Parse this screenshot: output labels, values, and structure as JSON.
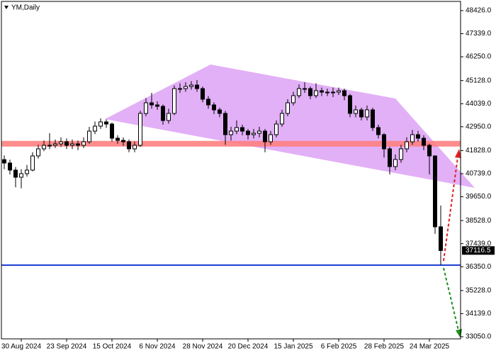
{
  "chart_data": {
    "type": "candlestick",
    "title": "YM,Daily",
    "categories": [
      null,
      null,
      null,
      "30 Aug 2024",
      null,
      null,
      null,
      null,
      null,
      null,
      null,
      "23 Sep 2024",
      null,
      null,
      null,
      null,
      null,
      null,
      null,
      "15 Oct 2024",
      null,
      null,
      null,
      null,
      null,
      null,
      null,
      "6 Nov 2024",
      null,
      null,
      null,
      null,
      null,
      null,
      null,
      "28 Nov 2024",
      null,
      null,
      null,
      null,
      null,
      null,
      null,
      "20 Dec 2024",
      null,
      null,
      null,
      null,
      null,
      null,
      null,
      "15 Jan 2025",
      null,
      null,
      null,
      null,
      null,
      null,
      null,
      "6 Feb 2025",
      null,
      null,
      null,
      null,
      null,
      null,
      null,
      "28 Feb 2025",
      null,
      null,
      null,
      null,
      null,
      null,
      null,
      "24 Mar 2025",
      null,
      null
    ],
    "open": [
      41400,
      41241,
      40907,
      40572,
      40739,
      40907,
      41575,
      41909,
      42076,
      42076,
      42143,
      42243,
      42076,
      42143,
      42076,
      42243,
      42745,
      42979,
      43179,
      43079,
      42410,
      42310,
      42243,
      41909,
      42076,
      43580,
      44081,
      43981,
      43914,
      43246,
      43580,
      44750,
      44750,
      44850,
      44917,
      44750,
      44249,
      43981,
      43747,
      43580,
      42578,
      42745,
      42912,
      42745,
      42578,
      42644,
      42745,
      42243,
      42578,
      43079,
      43580,
      44081,
      44416,
      44750,
      44750,
      44416,
      44650,
      44583,
      44583,
      44583,
      44650,
      44416,
      43580,
      43747,
      43413,
      43747,
      42912,
      42578,
      41909,
      41074,
      41408,
      41909,
      42243,
      42578,
      42410,
      42076,
      41575,
      38233
    ],
    "high": [
      41600,
      41400,
      41050,
      40950,
      41150,
      41750,
      42100,
      42300,
      42650,
      42350,
      42450,
      42400,
      42350,
      42300,
      42450,
      42950,
      43200,
      43350,
      43300,
      43150,
      42550,
      42450,
      42350,
      42250,
      43700,
      44300,
      44550,
      44150,
      44000,
      43800,
      44900,
      45000,
      45050,
      45100,
      45150,
      44850,
      44400,
      44100,
      43850,
      43700,
      42950,
      43250,
      43050,
      42850,
      42850,
      42950,
      42850,
      42750,
      43250,
      43750,
      44250,
      44600,
      44950,
      45050,
      44850,
      45000,
      44800,
      44750,
      44800,
      44800,
      44750,
      44500,
      43950,
      43850,
      43950,
      43850,
      43050,
      42650,
      42000,
      41650,
      42100,
      42450,
      42800,
      42750,
      42550,
      42150,
      41600,
      39236
    ],
    "low": [
      40950,
      40700,
      40100,
      40050,
      40600,
      40850,
      41450,
      41800,
      41900,
      41950,
      42000,
      41900,
      41900,
      41850,
      41950,
      42150,
      42600,
      42850,
      42900,
      42250,
      42150,
      42050,
      41750,
      41750,
      42000,
      43450,
      43800,
      43750,
      43050,
      43100,
      43500,
      44550,
      44600,
      44700,
      44600,
      44100,
      43800,
      43550,
      43400,
      42100,
      42300,
      42600,
      42550,
      42350,
      42400,
      42450,
      41750,
      42100,
      42450,
      42950,
      43450,
      43950,
      44300,
      44550,
      44250,
      44300,
      44400,
      44400,
      44350,
      44450,
      44200,
      43400,
      43400,
      43250,
      43250,
      42750,
      42400,
      41500,
      40700,
      40900,
      41250,
      41750,
      42100,
      42250,
      41850,
      40700,
      37900,
      36427
    ],
    "close": [
      41241,
      40907,
      40572,
      40739,
      40907,
      41575,
      41909,
      42076,
      42076,
      42143,
      42243,
      42076,
      42143,
      42076,
      42243,
      42745,
      42979,
      43179,
      43079,
      42410,
      42310,
      42243,
      41909,
      42076,
      43580,
      44081,
      43981,
      43914,
      43246,
      43580,
      44750,
      44750,
      44850,
      44917,
      44750,
      44249,
      43981,
      43747,
      43580,
      42578,
      42745,
      42912,
      42745,
      42578,
      42644,
      42745,
      42243,
      42578,
      43079,
      43580,
      44081,
      44416,
      44750,
      44750,
      44416,
      44650,
      44583,
      44583,
      44583,
      44650,
      44416,
      43580,
      43747,
      43413,
      43747,
      42912,
      42578,
      41909,
      41074,
      41408,
      41909,
      42243,
      42578,
      42410,
      42076,
      41575,
      38233,
      37116
    ],
    "up_color": "#ffffff",
    "down_color": "#000000",
    "ylim": [
      33050,
      48426
    ],
    "yticks": [
      {
        "value": 48426,
        "label": "48426.0"
      },
      {
        "value": 47339,
        "label": "47339.0"
      },
      {
        "value": 46250,
        "label": "46250.0"
      },
      {
        "value": 45128,
        "label": "45128.0"
      },
      {
        "value": 44039,
        "label": "44039.0"
      },
      {
        "value": 42950,
        "label": "42950.0"
      },
      {
        "value": 41828,
        "label": "41828.0"
      },
      {
        "value": 40739,
        "label": "40739.0"
      },
      {
        "value": 39650,
        "label": "39650.0"
      },
      {
        "value": 38528,
        "label": "38528.0"
      },
      {
        "value": 37439,
        "label": "37439.0"
      },
      {
        "value": 36350,
        "label": "36350.0"
      },
      {
        "value": 35228,
        "label": "35228.0"
      },
      {
        "value": 34139,
        "label": "34139.0"
      },
      {
        "value": 33050,
        "label": "33050.0"
      }
    ],
    "last_price": 37116.5,
    "zone": {
      "value": 42150,
      "color": "#ff7f7f"
    },
    "support": {
      "value": 36427,
      "color": "#1f3fd4"
    }
  }
}
